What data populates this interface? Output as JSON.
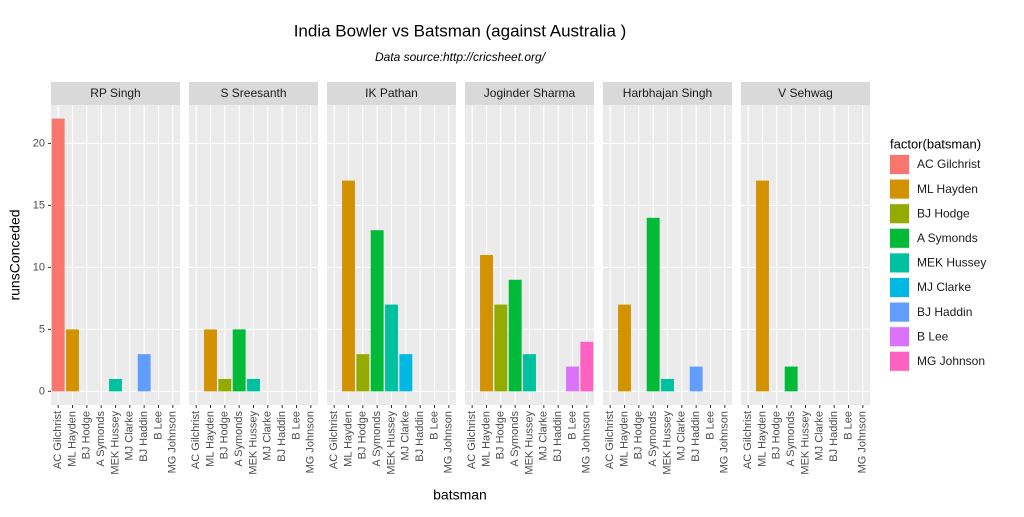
{
  "chart_data": {
    "type": "bar",
    "title": "India Bowler vs Batsman (against Australia )",
    "subtitle": "Data source:http://cricsheet.org/",
    "x_label": "batsman",
    "y_label": "runsConceded",
    "legend_title": "factor(batsman)",
    "categories": [
      "AC Gilchrist",
      "ML Hayden",
      "BJ Hodge",
      "A Symonds",
      "MEK Hussey",
      "MJ Clarke",
      "BJ Haddin",
      "B Lee",
      "MG Johnson"
    ],
    "colors": [
      "#F8766D",
      "#D39200",
      "#93AA00",
      "#00BA38",
      "#00C19F",
      "#00B9E3",
      "#619CFF",
      "#DB72FB",
      "#FF61C3"
    ],
    "facets": [
      {
        "name": "RP Singh",
        "values": [
          22,
          5,
          null,
          null,
          1,
          null,
          3,
          null,
          null
        ]
      },
      {
        "name": "S Sreesanth",
        "values": [
          null,
          5,
          1,
          5,
          1,
          null,
          null,
          null,
          null
        ]
      },
      {
        "name": "IK Pathan",
        "values": [
          null,
          17,
          3,
          13,
          7,
          3,
          null,
          null,
          null
        ]
      },
      {
        "name": "Joginder Sharma",
        "values": [
          null,
          11,
          7,
          9,
          3,
          null,
          null,
          2,
          4
        ]
      },
      {
        "name": "Harbhajan Singh",
        "values": [
          null,
          7,
          null,
          14,
          1,
          null,
          2,
          null,
          null
        ]
      },
      {
        "name": "V Sehwag",
        "values": [
          null,
          17,
          null,
          2,
          null,
          null,
          null,
          null,
          null
        ]
      }
    ],
    "ylim": [
      -1.1,
      23.1
    ],
    "yticks": [
      0,
      5,
      10,
      15,
      20
    ],
    "grid": true
  }
}
